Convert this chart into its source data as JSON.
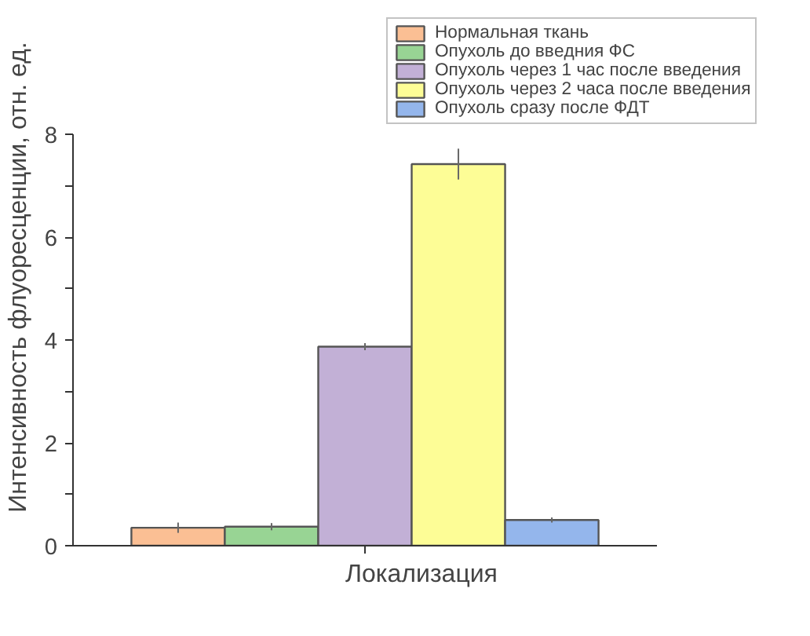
{
  "chart_data": {
    "type": "bar",
    "xlabel": "Локализация",
    "ylabel": "Интенсивность флуоресценции, отн. ед.",
    "categories": [
      null
    ],
    "series": [
      {
        "name": "Нормальная ткань",
        "color": "#fbbf94",
        "values": [
          0.35
        ],
        "errors": [
          0.1
        ]
      },
      {
        "name": "Опухоль до ввeдния ФС",
        "color": "#98d494",
        "values": [
          0.37
        ],
        "errors": [
          0.07
        ]
      },
      {
        "name": "Опухоль через 1 час после введения",
        "color": "#c2b0d6",
        "values": [
          3.87
        ],
        "errors": [
          0.07
        ]
      },
      {
        "name": "Опухоль через 2 часа после введения",
        "color": "#fdfd96",
        "values": [
          7.42
        ],
        "errors": [
          0.3
        ]
      },
      {
        "name": "Опухоль сразу после ФДТ",
        "color": "#94b6ec",
        "values": [
          0.5
        ],
        "errors": [
          0.05
        ]
      }
    ],
    "ylim": [
      0,
      8
    ],
    "yticks": [
      0,
      {
        "value": 1,
        "label": null
      },
      2,
      {
        "value": 3,
        "label": null
      },
      4,
      {
        "value": 5,
        "label": null
      },
      6,
      {
        "value": 7,
        "label": null
      },
      8
    ],
    "legend": "top right",
    "grid": false
  }
}
